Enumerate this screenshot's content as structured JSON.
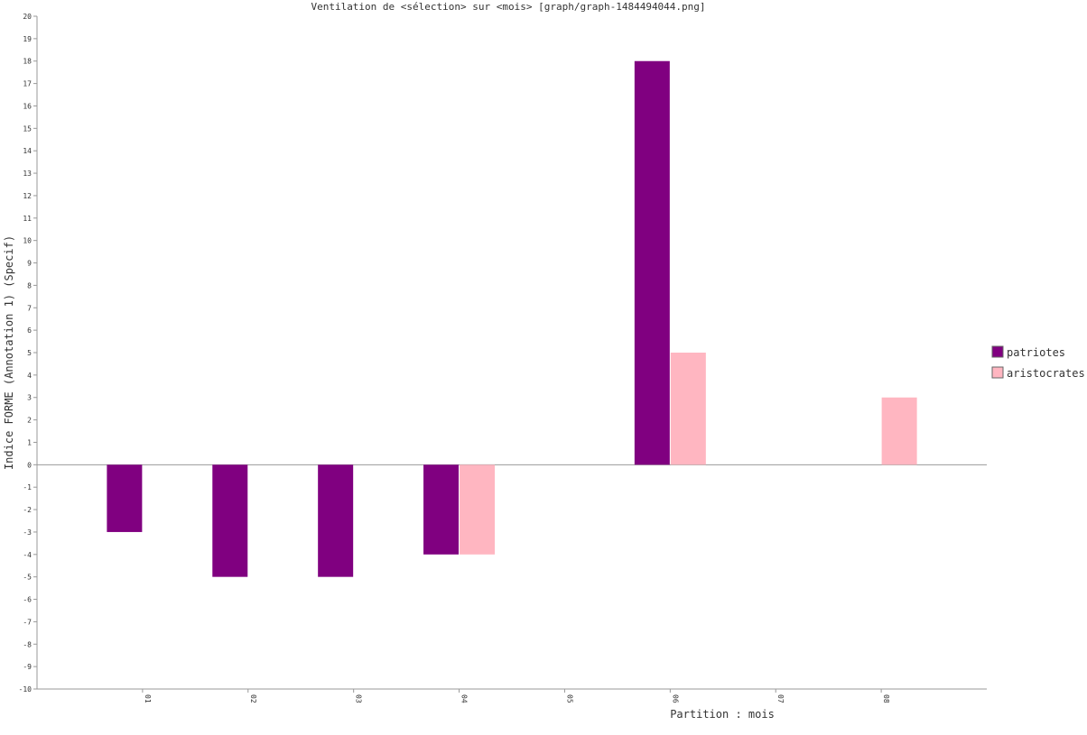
{
  "chart_data": {
    "type": "bar",
    "title": "Ventilation de <sélection> sur <mois> [graph/graph-1484494044.png]",
    "xlabel": "Partition : mois",
    "ylabel": "Indice FORME (Annotation 1) (Specif)",
    "categories": [
      "01",
      "02",
      "03",
      "04",
      "05",
      "06",
      "07",
      "08"
    ],
    "series": [
      {
        "name": "patriotes",
        "color": "#800080",
        "values": [
          -3,
          -5,
          -5,
          -4,
          0,
          18,
          0,
          0
        ]
      },
      {
        "name": "aristocrates",
        "color": "#FFB6C1",
        "values": [
          0,
          0,
          0,
          -4,
          0,
          5,
          0,
          3
        ]
      }
    ],
    "ylim": [
      -10,
      20
    ],
    "ytick_step": 1,
    "grid": false,
    "legend_position": "right"
  }
}
